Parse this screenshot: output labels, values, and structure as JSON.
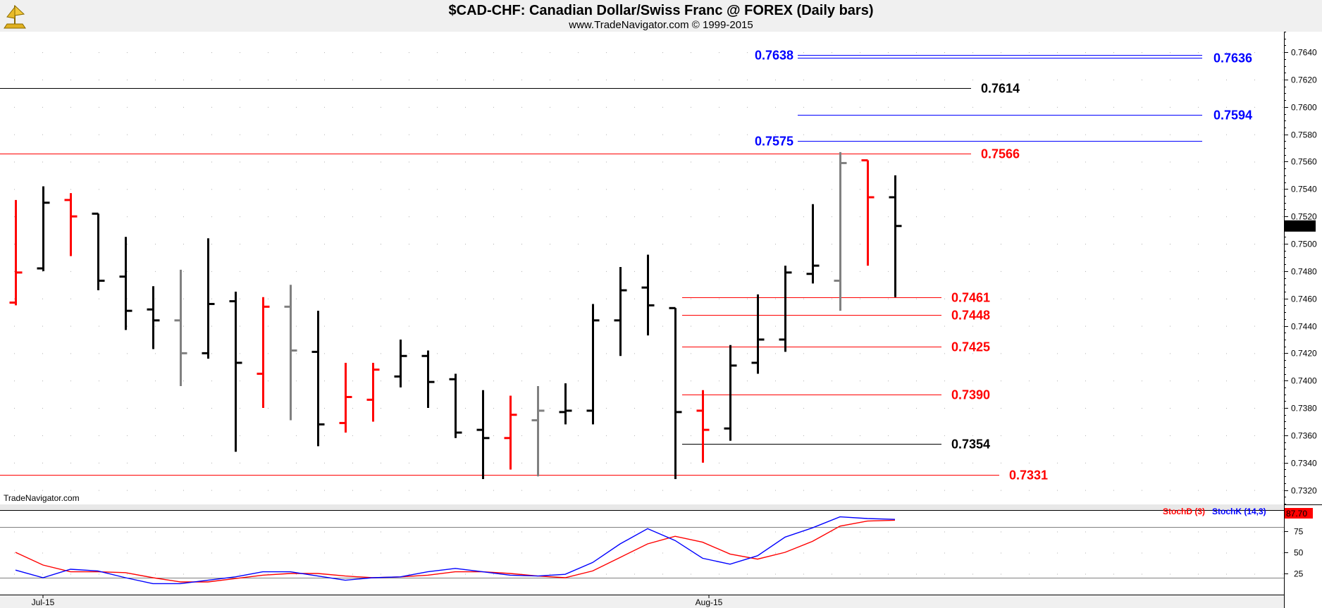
{
  "chart_data": {
    "type": "ohlc",
    "title": "$CAD-CHF:  Canadian Dollar/Swiss Franc @ FOREX  (Daily bars)",
    "subtitle": "www.TradeNavigator.com © 1999-2015",
    "watermark": "TradeNavigator.com",
    "price_axis": {
      "range": [
        0.731,
        0.7655
      ],
      "ticks": [
        "0.7320",
        "0.7340",
        "0.7360",
        "0.7380",
        "0.7400",
        "0.7420",
        "0.7440",
        "0.7460",
        "0.7480",
        "0.7500",
        "0.7520",
        "0.7540",
        "0.7560",
        "0.7580",
        "0.7600",
        "0.7620",
        "0.7640"
      ],
      "last_price": "0.7513"
    },
    "x_labels": [
      "Jul-15",
      "Aug-15"
    ],
    "colors": {
      "up": "#000000",
      "down": "#ff0000",
      "neutral": "#808080",
      "stoch_k": "#0000ff",
      "stoch_d": "#ff0000"
    },
    "bars": [
      {
        "o": 0.7457,
        "h": 0.7532,
        "l": 0.7455,
        "c": 0.7479,
        "color": "down"
      },
      {
        "o": 0.7482,
        "h": 0.7542,
        "l": 0.748,
        "c": 0.753,
        "color": "up"
      },
      {
        "o": 0.7532,
        "h": 0.7537,
        "l": 0.7491,
        "c": 0.752,
        "color": "down"
      },
      {
        "o": 0.7522,
        "h": 0.7522,
        "l": 0.7466,
        "c": 0.7473,
        "color": "up"
      },
      {
        "o": 0.7476,
        "h": 0.7505,
        "l": 0.7437,
        "c": 0.7451,
        "color": "up"
      },
      {
        "o": 0.7452,
        "h": 0.7469,
        "l": 0.7423,
        "c": 0.7444,
        "color": "up"
      },
      {
        "o": 0.7444,
        "h": 0.7481,
        "l": 0.7396,
        "c": 0.742,
        "color": "neutral"
      },
      {
        "o": 0.742,
        "h": 0.7504,
        "l": 0.7416,
        "c": 0.7456,
        "color": "up"
      },
      {
        "o": 0.7458,
        "h": 0.7465,
        "l": 0.7348,
        "c": 0.7413,
        "color": "up"
      },
      {
        "o": 0.7405,
        "h": 0.7461,
        "l": 0.738,
        "c": 0.7454,
        "color": "down"
      },
      {
        "o": 0.7454,
        "h": 0.747,
        "l": 0.7371,
        "c": 0.7422,
        "color": "neutral"
      },
      {
        "o": 0.7421,
        "h": 0.7451,
        "l": 0.7352,
        "c": 0.7368,
        "color": "up"
      },
      {
        "o": 0.7369,
        "h": 0.7413,
        "l": 0.7362,
        "c": 0.7388,
        "color": "down"
      },
      {
        "o": 0.7386,
        "h": 0.7413,
        "l": 0.737,
        "c": 0.7408,
        "color": "down"
      },
      {
        "o": 0.7403,
        "h": 0.743,
        "l": 0.7395,
        "c": 0.7418,
        "color": "up"
      },
      {
        "o": 0.7418,
        "h": 0.7422,
        "l": 0.738,
        "c": 0.7399,
        "color": "up"
      },
      {
        "o": 0.7401,
        "h": 0.7405,
        "l": 0.7358,
        "c": 0.7362,
        "color": "up"
      },
      {
        "o": 0.7364,
        "h": 0.7393,
        "l": 0.7328,
        "c": 0.7358,
        "color": "up"
      },
      {
        "o": 0.7358,
        "h": 0.7389,
        "l": 0.7335,
        "c": 0.7375,
        "color": "down"
      },
      {
        "o": 0.7371,
        "h": 0.7396,
        "l": 0.733,
        "c": 0.7378,
        "color": "neutral"
      },
      {
        "o": 0.7377,
        "h": 0.7398,
        "l": 0.7368,
        "c": 0.7378,
        "color": "up"
      },
      {
        "o": 0.7378,
        "h": 0.7456,
        "l": 0.7368,
        "c": 0.7444,
        "color": "up"
      },
      {
        "o": 0.7444,
        "h": 0.7483,
        "l": 0.7418,
        "c": 0.7466,
        "color": "up"
      },
      {
        "o": 0.7468,
        "h": 0.7492,
        "l": 0.7433,
        "c": 0.7455,
        "color": "up"
      },
      {
        "o": 0.7453,
        "h": 0.7453,
        "l": 0.7328,
        "c": 0.7377,
        "color": "up"
      },
      {
        "o": 0.7378,
        "h": 0.7393,
        "l": 0.734,
        "c": 0.7364,
        "color": "down"
      },
      {
        "o": 0.7365,
        "h": 0.7426,
        "l": 0.7356,
        "c": 0.7411,
        "color": "up"
      },
      {
        "o": 0.7413,
        "h": 0.7463,
        "l": 0.7405,
        "c": 0.743,
        "color": "up"
      },
      {
        "o": 0.743,
        "h": 0.7484,
        "l": 0.7421,
        "c": 0.7479,
        "color": "up"
      },
      {
        "o": 0.7478,
        "h": 0.7529,
        "l": 0.7471,
        "c": 0.7484,
        "color": "up"
      },
      {
        "o": 0.7473,
        "h": 0.7567,
        "l": 0.7451,
        "c": 0.7559,
        "color": "neutral"
      },
      {
        "o": 0.7561,
        "h": 0.7561,
        "l": 0.7484,
        "c": 0.7534,
        "color": "down"
      },
      {
        "o": 0.7534,
        "h": 0.755,
        "l": 0.7461,
        "c": 0.7513,
        "color": "up"
      }
    ],
    "levels": [
      {
        "value": 0.7638,
        "label": "0.7638",
        "color": "#0000ff",
        "side": "left"
      },
      {
        "value": 0.7636,
        "label": "0.7636",
        "color": "#0000ff",
        "side": "right"
      },
      {
        "value": 0.7614,
        "label": "0.7614",
        "color": "#000000",
        "side": "right"
      },
      {
        "value": 0.7594,
        "label": "0.7594",
        "color": "#0000ff",
        "side": "right"
      },
      {
        "value": 0.7575,
        "label": "0.7575",
        "color": "#0000ff",
        "side": "left"
      },
      {
        "value": 0.7566,
        "label": "0.7566",
        "color": "#ff0000",
        "side": "right"
      },
      {
        "value": 0.7461,
        "label": "0.7461",
        "color": "#ff0000",
        "side": "right"
      },
      {
        "value": 0.7448,
        "label": "0.7448",
        "color": "#ff0000",
        "side": "right"
      },
      {
        "value": 0.7425,
        "label": "0.7425",
        "color": "#ff0000",
        "side": "right"
      },
      {
        "value": 0.739,
        "label": "0.7390",
        "color": "#ff0000",
        "side": "right"
      },
      {
        "value": 0.7354,
        "label": "0.7354",
        "color": "#000000",
        "side": "right"
      },
      {
        "value": 0.7331,
        "label": "0.7331",
        "color": "#ff0000",
        "side": "right"
      }
    ],
    "stochastic": {
      "legend_d": "StochD (3)",
      "legend_k": "StochK (14,3)",
      "last_value": "87.70",
      "ticks": [
        "25",
        "50",
        "75"
      ],
      "reference_lines": [
        20,
        80
      ],
      "k": [
        29,
        20,
        30,
        28,
        20,
        13,
        13,
        17,
        21,
        27,
        27,
        22,
        17,
        20,
        21,
        27,
        31,
        27,
        23,
        22,
        24,
        38,
        60,
        78,
        64,
        43,
        36,
        46,
        68,
        79,
        92,
        90,
        89
      ],
      "d": [
        50,
        35,
        27,
        27,
        26,
        20,
        15,
        15,
        19,
        23,
        25,
        25,
        22,
        20,
        21,
        23,
        27,
        27,
        25,
        22,
        20,
        28,
        44,
        60,
        69,
        62,
        48,
        42,
        50,
        63,
        81,
        87,
        88
      ]
    }
  }
}
